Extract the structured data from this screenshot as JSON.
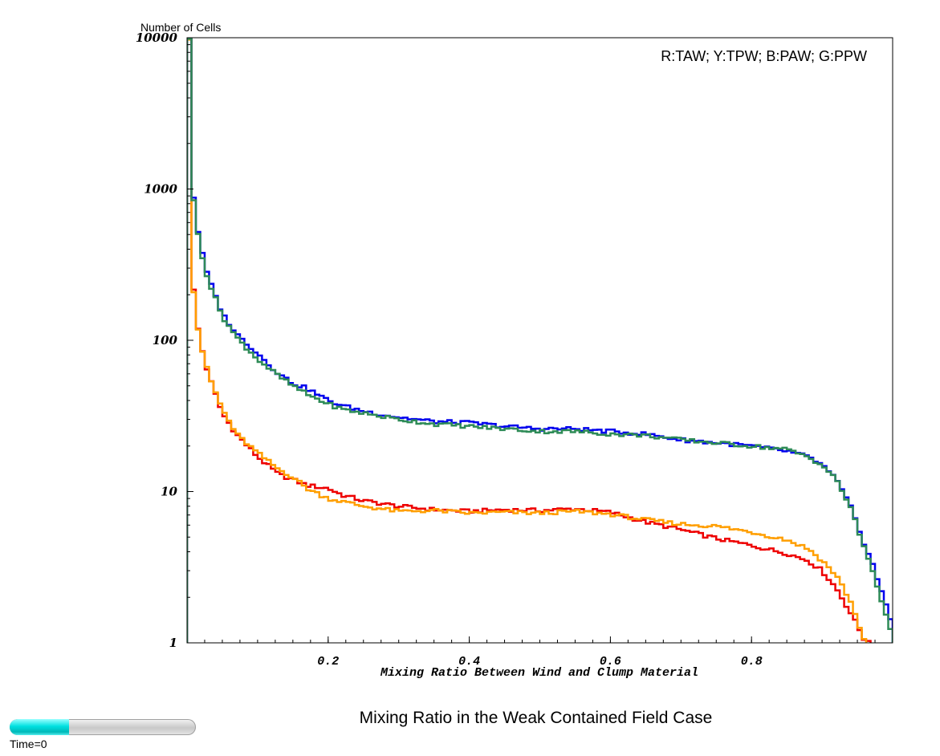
{
  "title": "Mixing Ratio in the Weak Contained Field Case",
  "time_slider": {
    "label": "Time=0",
    "progress": 0.32
  },
  "colors": {
    "red": "#ee0000",
    "yellow": "#ff9f00",
    "blue": "#0000ee",
    "green": "#2e8b57"
  },
  "chart_data": {
    "type": "line",
    "ylabel": "Number of Cells",
    "xlabel": "Mixing Ratio Between Wind and Clump Material",
    "legend_text": "R:TAW; Y:TPW; B:PAW; G:PPW",
    "legend_position": "top-right",
    "xlim": [
      0,
      1
    ],
    "ylim": [
      1,
      10000
    ],
    "yscale": "log",
    "x_ticks": [
      "0.2",
      "0.4",
      "0.6",
      "0.8"
    ],
    "y_ticks": [
      "1",
      "10",
      "100",
      "1000",
      "10000"
    ],
    "x": [
      0,
      0.01,
      0.02,
      0.03,
      0.05,
      0.07,
      0.1,
      0.13,
      0.15,
      0.17,
      0.2,
      0.22,
      0.25,
      0.3,
      0.35,
      0.4,
      0.45,
      0.5,
      0.55,
      0.6,
      0.65,
      0.7,
      0.75,
      0.8,
      0.85,
      0.88,
      0.9,
      0.92,
      0.94,
      0.95,
      0.96,
      0.97,
      0.98,
      0.99,
      1.0
    ],
    "series": [
      {
        "color": "#ee0000",
        "values": [
          10000,
          165,
          92,
          60,
          33,
          24,
          17,
          13,
          12,
          11,
          10.5,
          9.5,
          8.7,
          8.0,
          7.6,
          7.4,
          7.6,
          7.5,
          7.7,
          7.3,
          6.3,
          5.6,
          4.9,
          4.4,
          3.9,
          3.5,
          3.0,
          2.3,
          1.6,
          1.3,
          1.05,
          1.05,
          null,
          null,
          null
        ]
      },
      {
        "color": "#ff9f00",
        "values": [
          10000,
          165,
          92,
          60,
          35,
          24,
          18,
          14,
          12.5,
          10.5,
          9.0,
          8.6,
          8.0,
          7.4,
          7.5,
          7.2,
          7.3,
          7.2,
          7.4,
          7.1,
          6.5,
          6.1,
          5.9,
          5.4,
          4.8,
          4.2,
          3.5,
          2.8,
          1.9,
          1.4,
          1.05,
          null,
          null,
          null,
          null
        ]
      },
      {
        "color": "#0000ee",
        "values": [
          10000,
          750,
          400,
          260,
          150,
          110,
          82,
          60,
          52,
          48,
          40,
          37,
          34,
          31,
          29,
          28.5,
          27,
          26,
          26,
          25,
          24,
          22,
          21,
          20,
          18.5,
          17,
          15,
          12,
          8,
          6,
          4.5,
          3.5,
          2.5,
          1.8,
          1.3
        ]
      },
      {
        "color": "#2e8b57",
        "values": [
          10000,
          700,
          390,
          250,
          145,
          105,
          75,
          58,
          50,
          44,
          38,
          35,
          33,
          30,
          28,
          27,
          26,
          25,
          25,
          24,
          23.5,
          22,
          21,
          20,
          19,
          17,
          15,
          12,
          8,
          5.8,
          4.2,
          3.2,
          2.2,
          1.6,
          1.1
        ]
      }
    ]
  }
}
